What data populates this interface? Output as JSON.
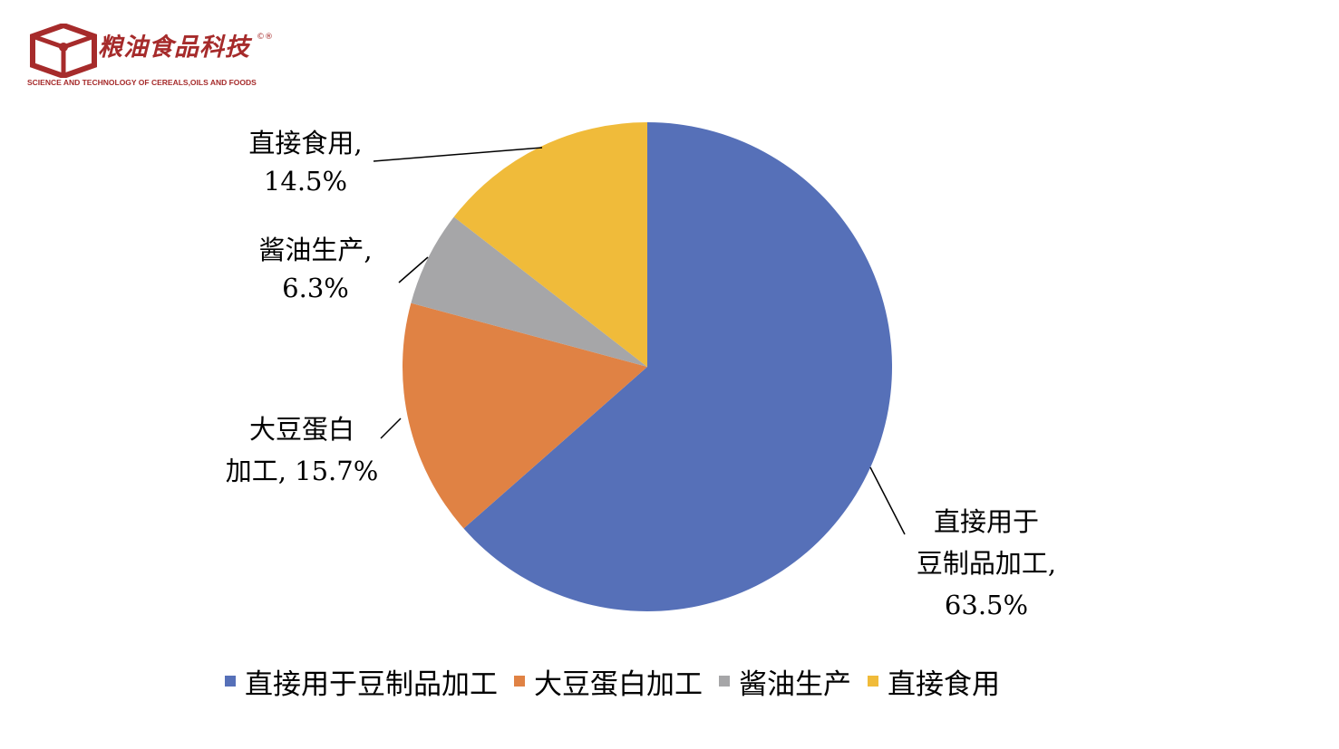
{
  "logo": {
    "title": "粮油食品科技",
    "mark": "©®",
    "subtitle": "SCIENCE AND TECHNOLOGY OF CEREALS,OILS AND FOODS"
  },
  "chart_data": {
    "type": "pie",
    "title": "",
    "categories": [
      "直接用于豆制品加工",
      "大豆蛋白加工",
      "酱油生产",
      "直接食用"
    ],
    "values": [
      63.5,
      15.7,
      6.3,
      14.5
    ],
    "unit": "%",
    "colors": [
      "#5670b8",
      "#e08244",
      "#a6a6a8",
      "#f0bb3a"
    ],
    "start_angle_deg": 0,
    "direction": "clockwise",
    "data_labels": [
      [
        "直接用于",
        "豆制品加工,",
        "63.5%"
      ],
      [
        "大豆蛋白",
        "加工, 15.7%"
      ],
      [
        "酱油生产,",
        "6.3%"
      ],
      [
        "直接食用,",
        "14.5%"
      ]
    ],
    "legend_position": "bottom"
  }
}
